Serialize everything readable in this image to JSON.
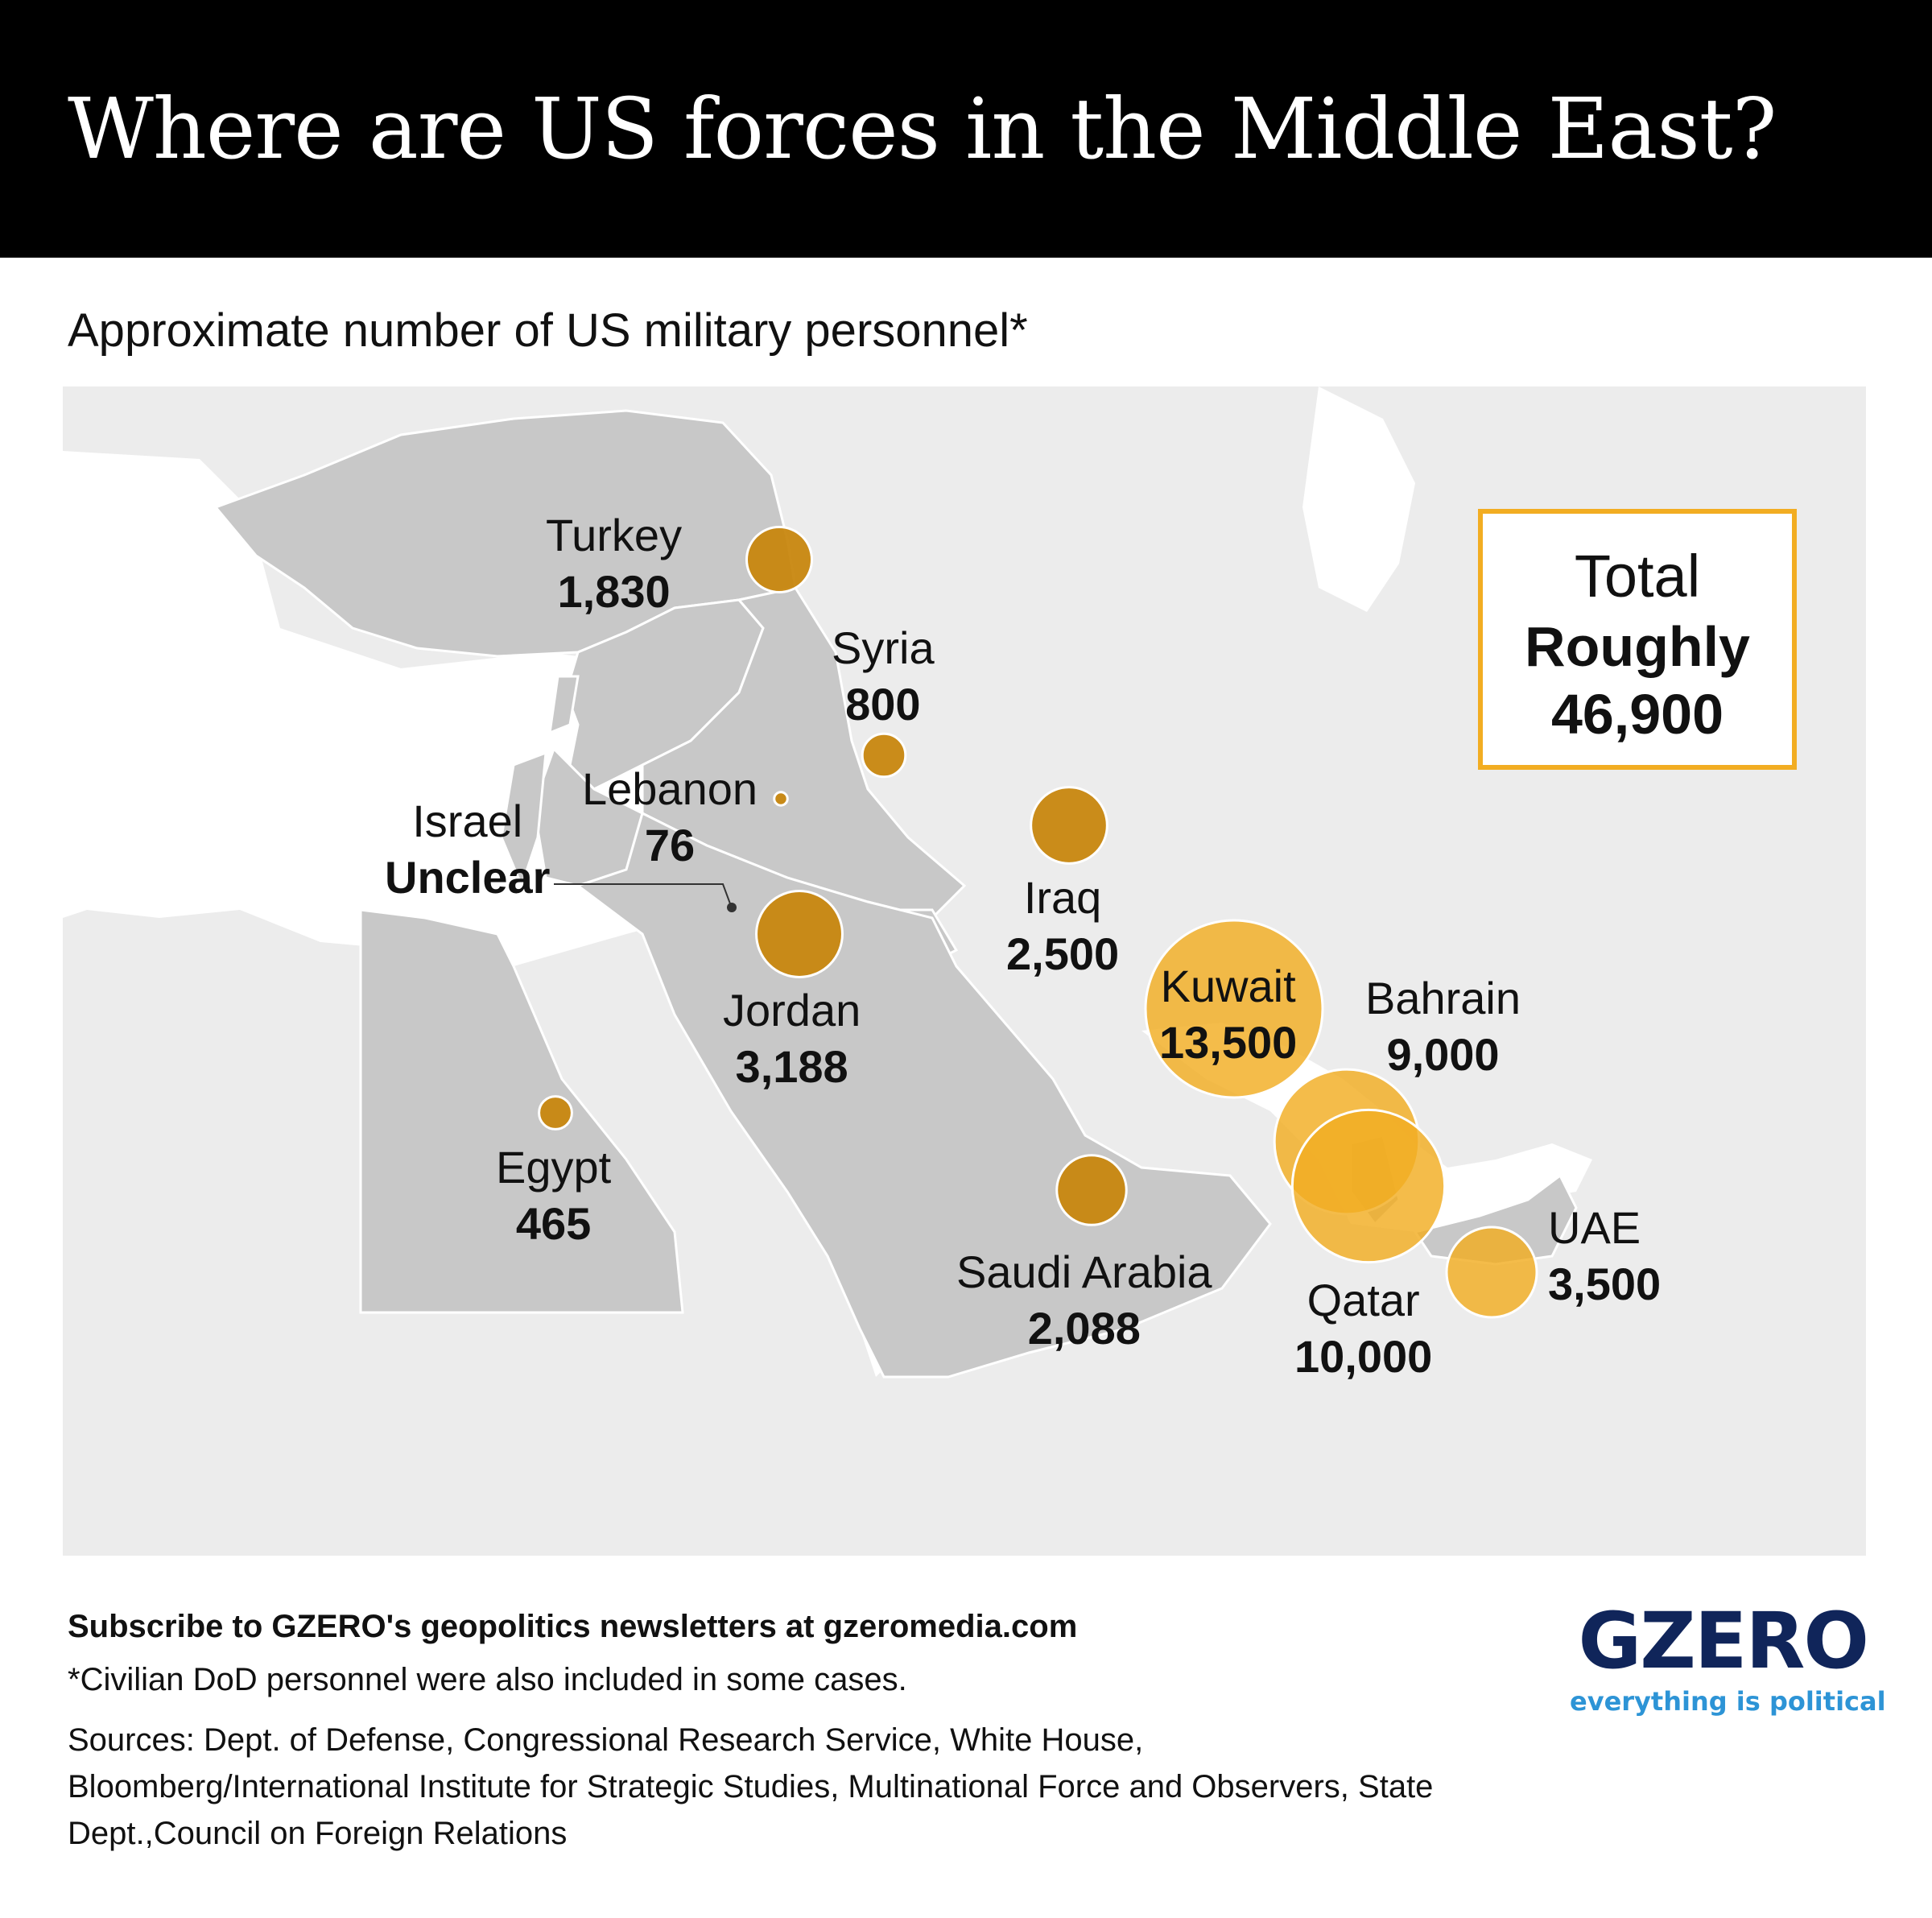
{
  "title": "Where are US forces in the Middle East?",
  "subtitle": "Approximate number of US military personnel*",
  "colors": {
    "bubble": "#c8870f",
    "bubble_highlight": "#f2ad22",
    "land": "#c8c8c8",
    "other_land": "#ececec",
    "accent_border": "#f2ad22",
    "logo_blue": "#10255a",
    "tag_blue": "#2d94d6"
  },
  "countries": [
    {
      "name": "Turkey",
      "value": "1,830",
      "personnel": 1830
    },
    {
      "name": "Syria",
      "value": "800",
      "personnel": 800
    },
    {
      "name": "Lebanon",
      "value": "76",
      "personnel": 76
    },
    {
      "name": "Israel",
      "value": "Unclear",
      "personnel": null
    },
    {
      "name": "Jordan",
      "value": "3,188",
      "personnel": 3188
    },
    {
      "name": "Iraq",
      "value": "2,500",
      "personnel": 2500
    },
    {
      "name": "Kuwait",
      "value": "13,500",
      "personnel": 13500
    },
    {
      "name": "Bahrain",
      "value": "9,000",
      "personnel": 9000
    },
    {
      "name": "Egypt",
      "value": "465",
      "personnel": 465
    },
    {
      "name": "Saudi Arabia",
      "value": "2,088",
      "personnel": 2088
    },
    {
      "name": "Qatar",
      "value": "10,000",
      "personnel": 10000
    },
    {
      "name": "UAE",
      "value": "3,500",
      "personnel": 3500
    }
  ],
  "total": {
    "label": "Total",
    "prefix": "Roughly",
    "value": "46,900"
  },
  "footer": {
    "subscribe": "Subscribe to GZERO's geopolitics newsletters at gzeromedia.com",
    "footnote": "*Civilian DoD personnel were also included in some cases.",
    "sources": "Sources: Dept. of Defense, Congressional Research Service, White House, Bloomberg/International Institute for Strategic Studies, Multinational Force and Observers, State Dept.,Council on Foreign Relations"
  },
  "logo": {
    "name": "GZERO",
    "tagline": "everything is political"
  }
}
